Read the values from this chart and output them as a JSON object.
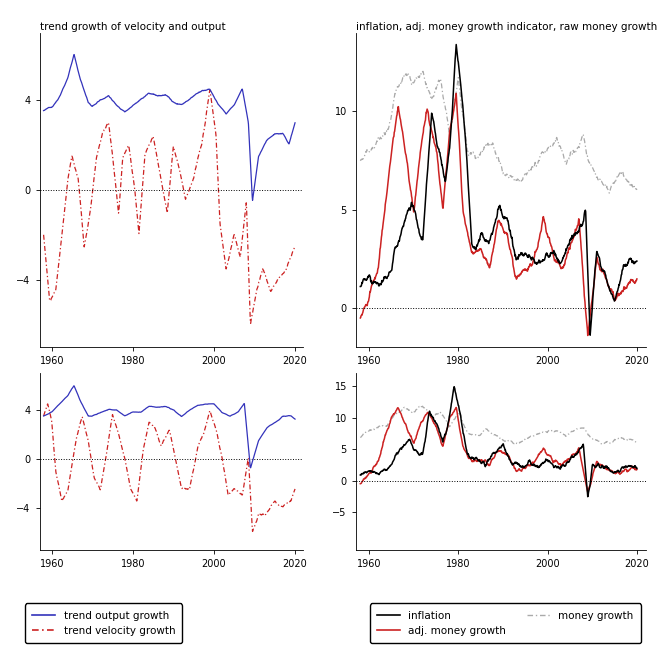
{
  "subplot_titles": [
    "trend growth of velocity and output",
    "inflation, adj. money growth indicator, raw money growth",
    "",
    ""
  ],
  "colors": {
    "blue_solid": "#3333BB",
    "red_dashed": "#CC2222",
    "black_solid": "#000000",
    "gray_dashdot": "#AAAAAA",
    "red_solid": "#CC2222"
  },
  "legend_left": {
    "line1_label": "trend output growth",
    "line2_label": "trend velocity growth"
  },
  "legend_right": {
    "line1_label": "inflation",
    "line2_label": "adj. money growth",
    "line3_label": "money growth"
  }
}
